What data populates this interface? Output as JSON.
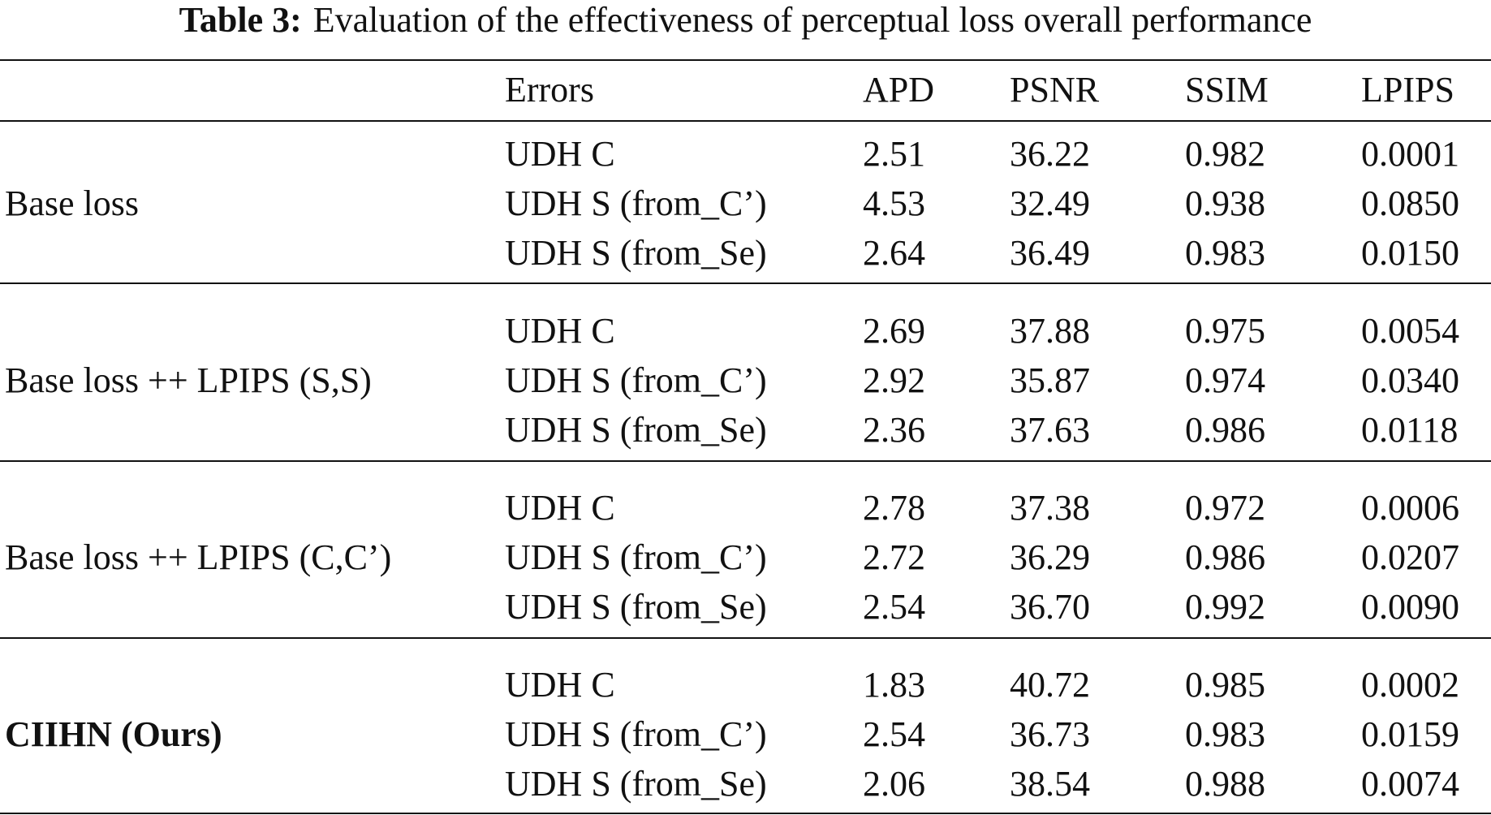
{
  "caption": {
    "label": "Table 3:",
    "text": "Evaluation of the effectiveness of perceptual loss overall performance"
  },
  "table": {
    "headers": {
      "method": "",
      "errors": "Errors",
      "apd": "APD",
      "psnr": "PSNR",
      "ssim": "SSIM",
      "lpips": "LPIPS"
    },
    "groups": [
      {
        "method": "Base loss",
        "rows": [
          {
            "errors": "UDH C",
            "apd": "2.51",
            "psnr": "36.22",
            "ssim": "0.982",
            "lpips": "0.0001"
          },
          {
            "errors": "UDH S (from_C’)",
            "apd": "4.53",
            "psnr": "32.49",
            "ssim": "0.938",
            "lpips": "0.0850"
          },
          {
            "errors": "UDH S (from_Se)",
            "apd": "2.64",
            "psnr": "36.49",
            "ssim": "0.983",
            "lpips": "0.0150"
          }
        ]
      },
      {
        "method": "Base loss ++ LPIPS (S,S)",
        "rows": [
          {
            "errors": "UDH C",
            "apd": "2.69",
            "psnr": "37.88",
            "ssim": "0.975",
            "lpips": "0.0054"
          },
          {
            "errors": "UDH S (from_C’)",
            "apd": "2.92",
            "psnr": "35.87",
            "ssim": "0.974",
            "lpips": "0.0340"
          },
          {
            "errors": "UDH S (from_Se)",
            "apd": "2.36",
            "psnr": "37.63",
            "ssim": "0.986",
            "lpips": "0.0118"
          }
        ]
      },
      {
        "method": "Base loss ++ LPIPS (C,C’)",
        "rows": [
          {
            "errors": "UDH C",
            "apd": "2.78",
            "psnr": "37.38",
            "ssim": "0.972",
            "lpips": "0.0006"
          },
          {
            "errors": "UDH S (from_C’)",
            "apd": "2.72",
            "psnr": "36.29",
            "ssim": "0.986",
            "lpips": "0.0207"
          },
          {
            "errors": "UDH S (from_Se)",
            "apd": "2.54",
            "psnr": "36.70",
            "ssim": "0.992",
            "lpips": "0.0090"
          }
        ]
      },
      {
        "method": "CIIHN (Ours)",
        "rows": [
          {
            "errors": "UDH C",
            "apd": "1.83",
            "psnr": "40.72",
            "ssim": "0.985",
            "lpips": "0.0002"
          },
          {
            "errors": "UDH S (from_C’)",
            "apd": "2.54",
            "psnr": "36.73",
            "ssim": "0.983",
            "lpips": "0.0159"
          },
          {
            "errors": "UDH S (from_Se)",
            "apd": "2.06",
            "psnr": "38.54",
            "ssim": "0.988",
            "lpips": "0.0074"
          }
        ]
      }
    ]
  }
}
